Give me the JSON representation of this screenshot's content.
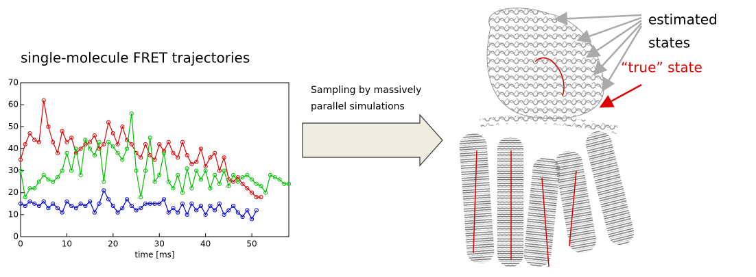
{
  "heading": "single-molecule FRET trajectories",
  "arrow_label": [
    "Sampling by massively",
    "parallel simulations"
  ],
  "estimated_label": [
    "estimated",
    "states"
  ],
  "true_state_label": "“true” state",
  "chart_data": {
    "type": "line",
    "x_label": "time [ms]",
    "x": [
      0,
      1,
      2,
      3,
      4,
      5,
      6,
      7,
      8,
      9,
      10,
      11,
      12,
      13,
      14,
      15,
      16,
      17,
      18,
      19,
      20,
      21,
      22,
      23,
      24,
      25,
      26,
      27,
      28,
      29,
      30,
      31,
      32,
      33,
      34,
      35,
      36,
      37,
      38,
      39,
      40,
      41,
      42,
      43,
      44,
      45,
      46,
      47,
      48,
      49,
      50,
      51,
      52,
      53,
      54,
      55,
      56,
      57,
      58
    ],
    "xlim": [
      0,
      58
    ],
    "xticks": [
      0,
      10,
      20,
      30,
      40,
      50
    ],
    "ylim": [
      0,
      70
    ],
    "yticks": [
      0,
      10,
      20,
      30,
      40,
      50,
      60,
      70
    ],
    "series": [
      {
        "color": "#e00000",
        "values": [
          35,
          42,
          47,
          44,
          43,
          62,
          50,
          43,
          38,
          48,
          43,
          45,
          38,
          40,
          42,
          43,
          46,
          40,
          42,
          52,
          47,
          42,
          50,
          44,
          42,
          38,
          36,
          42,
          37,
          35,
          42,
          39,
          43,
          38,
          36,
          43,
          37,
          33,
          34,
          40,
          32,
          36,
          38,
          30,
          36,
          26,
          25,
          27,
          24,
          22,
          20,
          18,
          18,
          null,
          null,
          null,
          null,
          null,
          null
        ]
      },
      {
        "color": "#00c000",
        "values": [
          30,
          18,
          22,
          22,
          25,
          28,
          26,
          25,
          27,
          30,
          38,
          30,
          40,
          28,
          44,
          40,
          37,
          43,
          25,
          43,
          41,
          38,
          35,
          40,
          56,
          30,
          18,
          30,
          45,
          25,
          28,
          38,
          25,
          22,
          28,
          20,
          31,
          22,
          30,
          26,
          30,
          22,
          28,
          24,
          30,
          23,
          28,
          25,
          27,
          28,
          26,
          24,
          23,
          20,
          28,
          27,
          26,
          24,
          24
        ]
      },
      {
        "color": "#0000e0",
        "values": [
          15,
          14,
          16,
          15,
          14,
          16,
          13,
          15,
          13,
          11,
          16,
          14,
          13,
          15,
          14,
          16,
          11,
          15,
          21,
          17,
          14,
          11,
          13,
          17,
          14,
          12,
          13,
          15,
          15,
          15,
          15,
          17,
          11,
          13,
          11,
          15,
          10,
          15,
          12,
          14,
          10,
          14,
          12,
          15,
          10,
          12,
          14,
          11,
          9,
          12,
          8,
          12,
          null,
          null,
          null,
          null,
          null,
          null,
          null
        ]
      }
    ]
  }
}
